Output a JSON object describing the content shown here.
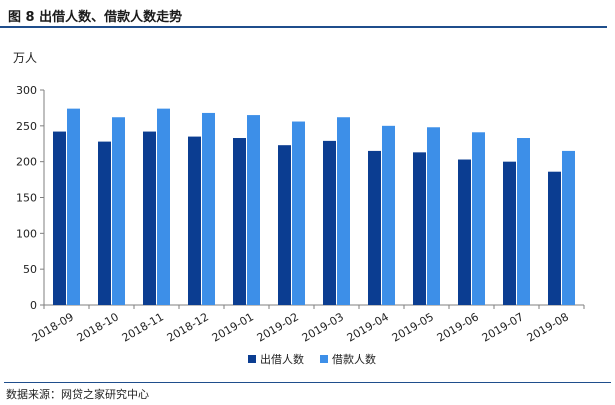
{
  "figure": {
    "title": "图 8   出借人数、借款人数走势",
    "source": "数据来源：网贷之家研究中心"
  },
  "chart_data": {
    "type": "bar",
    "ylabel": "万人",
    "ylim": [
      0,
      300
    ],
    "yticks": [
      0,
      50,
      100,
      150,
      200,
      250,
      300
    ],
    "categories": [
      "2018-09",
      "2018-10",
      "2018-11",
      "2018-12",
      "2019-01",
      "2019-02",
      "2019-03",
      "2019-04",
      "2019-05",
      "2019-06",
      "2019-07",
      "2019-08"
    ],
    "series": [
      {
        "name": "出借人数",
        "color": "#0b3d91",
        "values": [
          242,
          228,
          242,
          235,
          233,
          223,
          229,
          215,
          213,
          203,
          200,
          186
        ]
      },
      {
        "name": "借款人数",
        "color": "#3d8fe8",
        "values": [
          274,
          262,
          274,
          268,
          265,
          256,
          262,
          250,
          248,
          241,
          233,
          215
        ]
      }
    ],
    "legend": "bottom-center",
    "grid": false
  }
}
